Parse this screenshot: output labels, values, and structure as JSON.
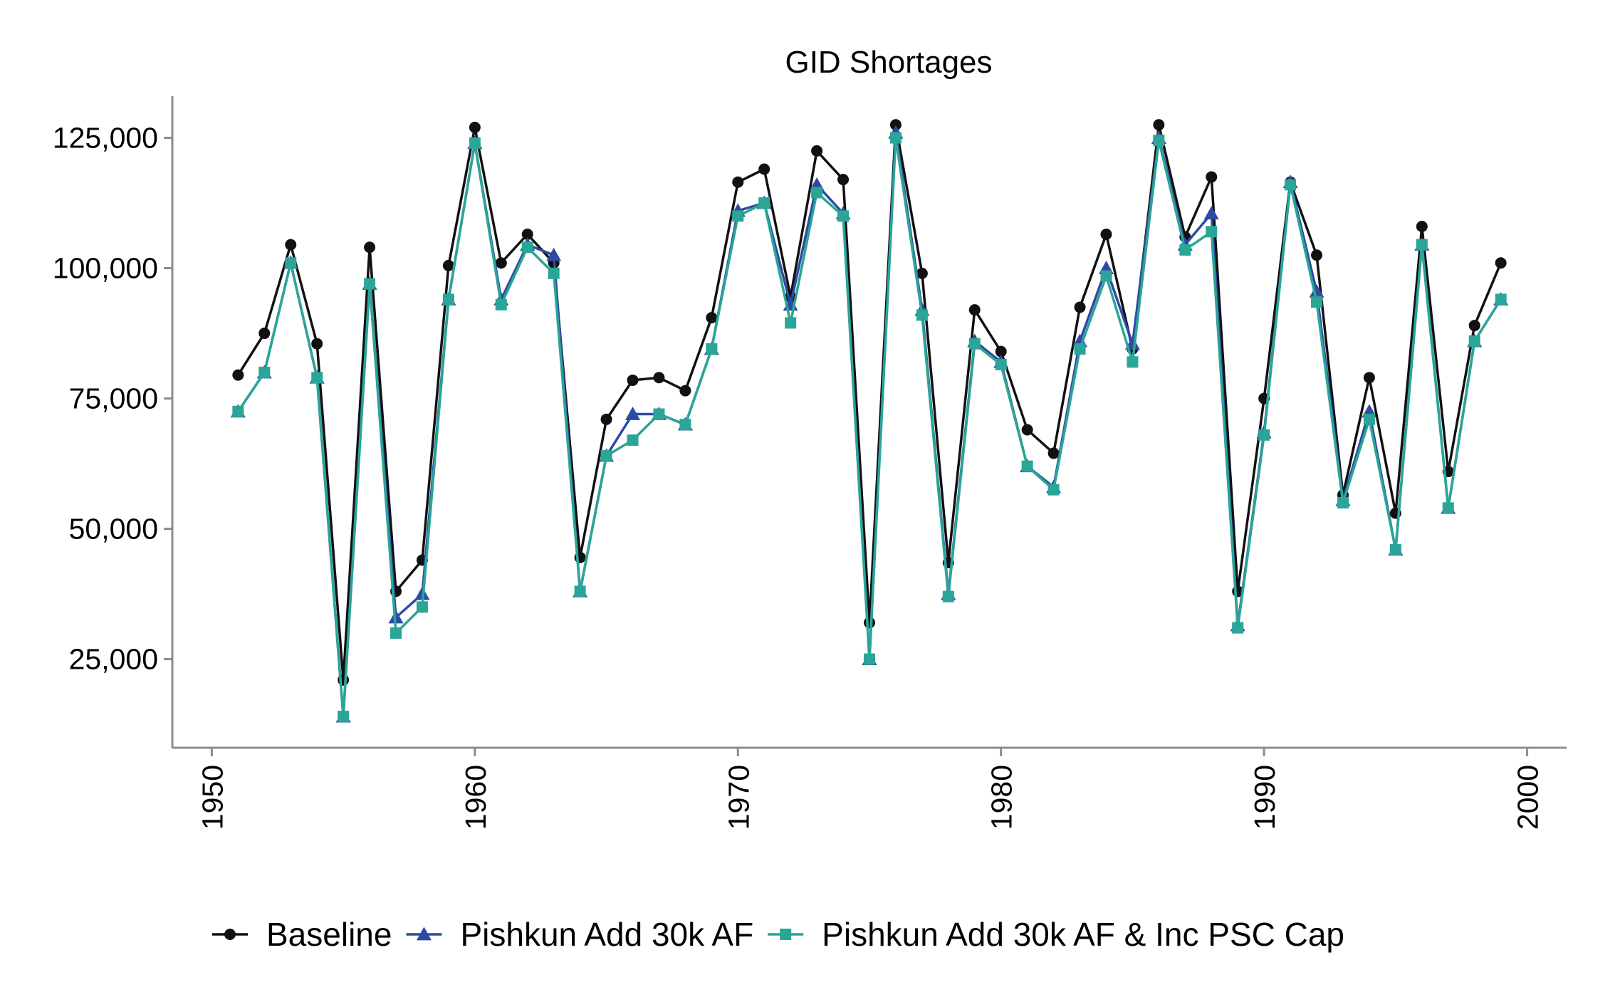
{
  "chart_data": {
    "type": "line",
    "title": "GID Shortages",
    "xlabel": "",
    "ylabel": "",
    "xlim": [
      1948.5,
      2001.5
    ],
    "ylim": [
      8000,
      133000
    ],
    "xticks": [
      1950,
      1960,
      1970,
      1980,
      1990,
      2000
    ],
    "xtick_labels": [
      "1950",
      "1960",
      "1970",
      "1980",
      "1990",
      "2000"
    ],
    "yticks": [
      25000,
      50000,
      75000,
      100000,
      125000
    ],
    "ytick_labels": [
      "25,000",
      "50,000",
      "75,000",
      "100,000",
      "125,000"
    ],
    "grid": false,
    "legend_position": "bottom",
    "x": [
      1951,
      1952,
      1953,
      1954,
      1955,
      1956,
      1957,
      1958,
      1959,
      1960,
      1961,
      1962,
      1963,
      1964,
      1965,
      1966,
      1967,
      1968,
      1969,
      1970,
      1971,
      1972,
      1973,
      1974,
      1975,
      1976,
      1977,
      1978,
      1979,
      1980,
      1981,
      1982,
      1983,
      1984,
      1985,
      1986,
      1987,
      1988,
      1989,
      1990,
      1991,
      1992,
      1993,
      1994,
      1995,
      1996,
      1997,
      1998,
      1999
    ],
    "series": [
      {
        "name": "Baseline",
        "color": "#111111",
        "marker": "circle",
        "values": [
          79500,
          87500,
          104500,
          85500,
          21000,
          104000,
          38000,
          44000,
          100500,
          127000,
          101000,
          106500,
          101000,
          44500,
          71000,
          78500,
          79000,
          76500,
          90500,
          116500,
          119000,
          94500,
          122500,
          117000,
          32000,
          127500,
          99000,
          43500,
          92000,
          84000,
          69000,
          64500,
          92500,
          106500,
          84500,
          127500,
          106000,
          117500,
          38000,
          75000,
          116500,
          102500,
          56500,
          79000,
          53000,
          108000,
          61000,
          89000,
          101000
        ]
      },
      {
        "name": "Pishkun Add 30k AF",
        "color": "#2e4aa3",
        "marker": "triangle",
        "values": [
          72500,
          80000,
          101000,
          79000,
          14000,
          97000,
          33000,
          37500,
          94000,
          124000,
          94000,
          104500,
          102500,
          38000,
          64000,
          72000,
          72000,
          70000,
          84500,
          111000,
          112500,
          93000,
          116000,
          110500,
          25000,
          126000,
          92000,
          37500,
          86000,
          82000,
          62000,
          58000,
          86000,
          100000,
          85500,
          125000,
          104500,
          110500,
          31500,
          68500,
          116500,
          95500,
          55500,
          72500,
          46000,
          104500,
          54000,
          86000,
          94000
        ]
      },
      {
        "name": "Pishkun Add 30k AF & Inc PSC Cap",
        "color": "#2aa597",
        "marker": "square",
        "values": [
          72500,
          80000,
          101000,
          79000,
          14000,
          97000,
          30000,
          35000,
          94000,
          124000,
          93000,
          104000,
          99000,
          38000,
          64000,
          67000,
          72000,
          70000,
          84500,
          110000,
          112500,
          89500,
          114500,
          110000,
          25000,
          125000,
          91000,
          37000,
          85500,
          81500,
          62000,
          57500,
          84500,
          98500,
          82000,
          124500,
          103500,
          107000,
          31000,
          68000,
          116000,
          93500,
          55000,
          71000,
          46000,
          104500,
          54000,
          86000,
          94000
        ]
      }
    ]
  }
}
